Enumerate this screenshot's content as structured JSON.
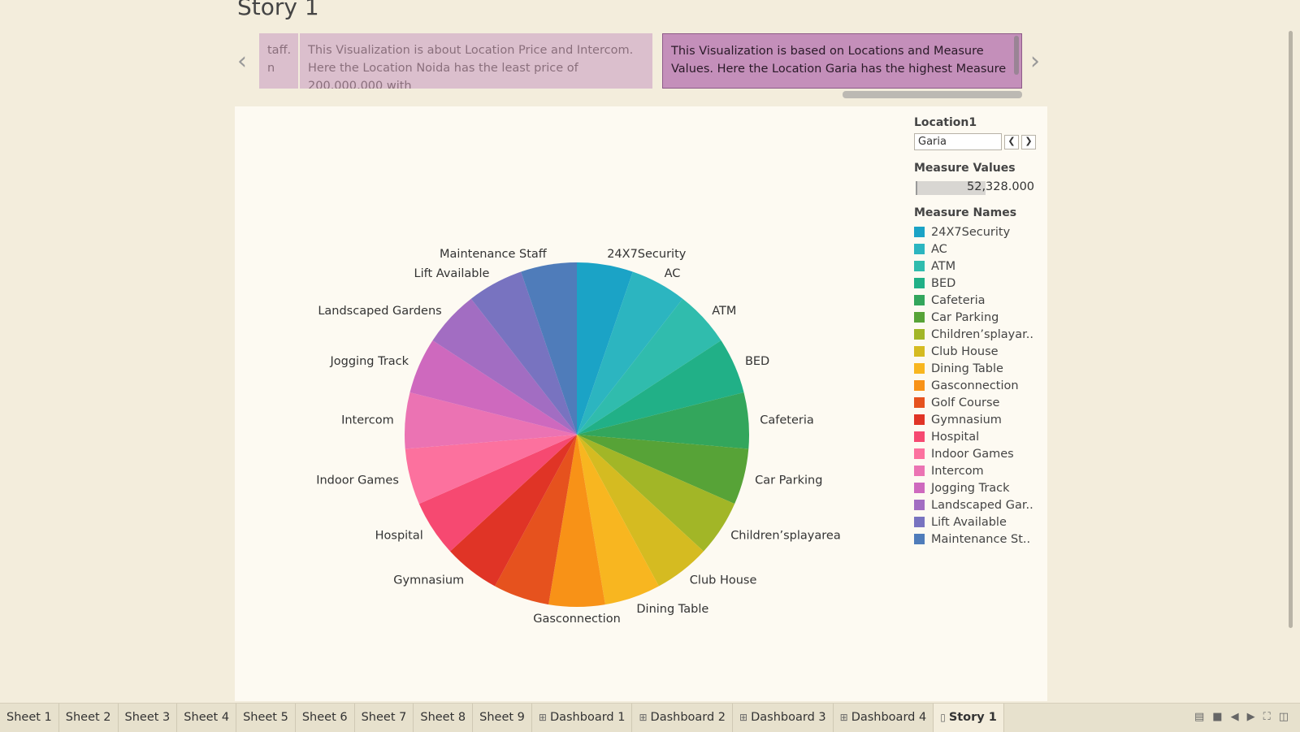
{
  "story": {
    "title": "Story 1"
  },
  "captions": [
    {
      "text": "taff.\nn"
    },
    {
      "text": "This Visualization is about Location Price and Intercom. Here the Location Noida has the least price of 200,000,000 with"
    },
    {
      "text": "This Visualization is based on Locations and Measure Values. Here the Location Garia has the highest Measure"
    }
  ],
  "filters": {
    "location_title": "Location1",
    "location_value": "Garia",
    "measure_values_title": "Measure Values",
    "measure_values_value": "52,328.000",
    "measure_names_title": "Measure Names",
    "measure_names_items": [
      "24X7Security",
      "AC",
      "ATM",
      "BED",
      "Cafeteria",
      "Car Parking",
      "Children’splayar..",
      "Club House",
      "Dining Table",
      "Gasconnection",
      "Golf Course",
      "Gymnasium",
      "Hospital",
      "Indoor Games",
      "Intercom",
      "Jogging Track",
      "Landscaped Gar..",
      "Lift Available",
      "Maintenance St.."
    ]
  },
  "chart_data": {
    "type": "pie",
    "categories": [
      "24X7Security",
      "AC",
      "ATM",
      "BED",
      "Cafeteria",
      "Car Parking",
      "Children’splayarea",
      "Club House",
      "Dining Table",
      "Gasconnection",
      "Golf Course",
      "Gymnasium",
      "Hospital",
      "Indoor Games",
      "Intercom",
      "Jogging Track",
      "Landscaped Gardens",
      "Lift Available",
      "Maintenance Staff"
    ],
    "visible_labels": [
      "24X7Security",
      "AC",
      "ATM",
      "BED",
      "Cafeteria",
      "Car Parking",
      "Children’splayarea",
      "Club House",
      "Dining Table",
      "Gasconnection",
      "",
      "Gymnasium",
      "Hospital",
      "Indoor Games",
      "Intercom",
      "Jogging Track",
      "Landscaped Gardens",
      "Lift Available",
      "Maintenance Staff"
    ],
    "values": [
      1,
      1,
      1,
      1,
      1,
      1,
      1,
      1,
      1,
      1,
      1,
      1,
      1,
      1,
      1,
      1,
      1,
      1,
      1
    ],
    "colors": [
      "#1ba3c6",
      "#2cb5c0",
      "#30bcad",
      "#21b087",
      "#33a65c",
      "#57a337",
      "#a2b627",
      "#d5bb21",
      "#f8b620",
      "#f89217",
      "#e6521e",
      "#e03426",
      "#f64971",
      "#fc719e",
      "#eb73b3",
      "#ce69be",
      "#a26dc2",
      "#7873c0",
      "#4f7cba"
    ],
    "legend_position": "right"
  },
  "tabs": [
    {
      "label": "Sheet 1",
      "icon": ""
    },
    {
      "label": "Sheet 2",
      "icon": ""
    },
    {
      "label": "Sheet 3",
      "icon": ""
    },
    {
      "label": "Sheet 4",
      "icon": ""
    },
    {
      "label": "Sheet 5",
      "icon": ""
    },
    {
      "label": "Sheet 6",
      "icon": ""
    },
    {
      "label": "Sheet 7",
      "icon": ""
    },
    {
      "label": "Sheet 8",
      "icon": ""
    },
    {
      "label": "Sheet 9",
      "icon": ""
    },
    {
      "label": "Dashboard 1",
      "icon": "dashboard-icon"
    },
    {
      "label": "Dashboard 2",
      "icon": "dashboard-icon"
    },
    {
      "label": "Dashboard 3",
      "icon": "dashboard-icon"
    },
    {
      "label": "Dashboard 4",
      "icon": "dashboard-icon"
    },
    {
      "label": "Story 1",
      "icon": "story-icon",
      "active": true
    }
  ]
}
